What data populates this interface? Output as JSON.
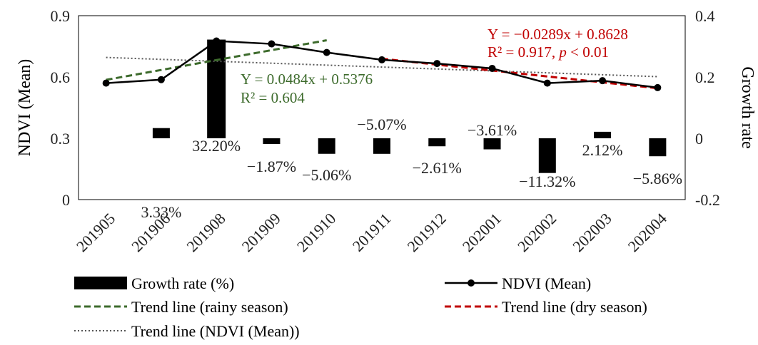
{
  "chart_data": {
    "type": "bar+line",
    "categories": [
      "201905",
      "201906",
      "201908",
      "201909",
      "201910",
      "201911",
      "201912",
      "202001",
      "202002",
      "202003",
      "202004"
    ],
    "left_axis": {
      "label": "NDVI (Mean)",
      "range": [
        0,
        0.9
      ],
      "ticks": [
        0,
        0.3,
        0.6,
        0.9
      ],
      "tick_labels": [
        "0",
        "0.3",
        "0.6",
        "0.9"
      ]
    },
    "right_axis": {
      "label": "Growth rate",
      "range": [
        -0.2,
        0.4
      ],
      "ticks": [
        -0.2,
        0,
        0.2,
        0.4
      ],
      "tick_labels": [
        "-0.2",
        "0",
        "0.2",
        "0.4"
      ]
    },
    "growth_rate": {
      "name": "Growth rate (%)",
      "axis": "right",
      "values": [
        null,
        0.0333,
        0.322,
        -0.0187,
        -0.0506,
        -0.0507,
        -0.0261,
        -0.0361,
        -0.1132,
        0.0212,
        -0.0586
      ],
      "labels": [
        "",
        "3.33%",
        "32.20%",
        "−1.87%",
        "−5.06%",
        "−5.07%",
        "−2.61%",
        "−3.61%",
        "−11.32%",
        "2.12%",
        "−5.86%"
      ],
      "color": "#000000"
    },
    "ndvi_mean": {
      "name": "NDVI (Mean)",
      "axis": "left",
      "values": [
        0.57,
        0.587,
        0.776,
        0.762,
        0.72,
        0.684,
        0.666,
        0.642,
        0.57,
        0.582,
        0.548
      ],
      "color": "#000000"
    },
    "trend_rainy": {
      "name": "Trend line (rainy season)",
      "slope": 0.0484,
      "intercept": 0.5376,
      "x_range": [
        1,
        5
      ],
      "color": "#3d6b2c",
      "equation": "Y = 0.0484x + 0.5376",
      "r2": "R² = 0.604"
    },
    "trend_dry": {
      "name": "Trend line (dry season)",
      "slope": -0.0289,
      "intercept": 0.8628,
      "x_range": [
        6,
        11
      ],
      "color": "#c00000",
      "equation": "Y = −0.0289x + 0.8628",
      "r2_prefix": "R² = 0.917, ",
      "r2_p": "p",
      "r2_suffix": " < 0.01"
    },
    "trend_mean": {
      "name": "Trend line (NDVI (Mean))",
      "slope": -0.0094,
      "intercept": 0.705,
      "x_range": [
        1,
        11
      ],
      "color": "#555555"
    },
    "legend": [
      {
        "key": "growth_rate",
        "label": "Growth rate (%)"
      },
      {
        "key": "ndvi_mean",
        "label": "NDVI (Mean)"
      },
      {
        "key": "trend_rainy",
        "label": "Trend line (rainy season)"
      },
      {
        "key": "trend_dry",
        "label": "Trend line (dry season)"
      },
      {
        "key": "trend_mean",
        "label": "Trend line (NDVI (Mean))"
      }
    ],
    "legend_position": "bottom"
  }
}
